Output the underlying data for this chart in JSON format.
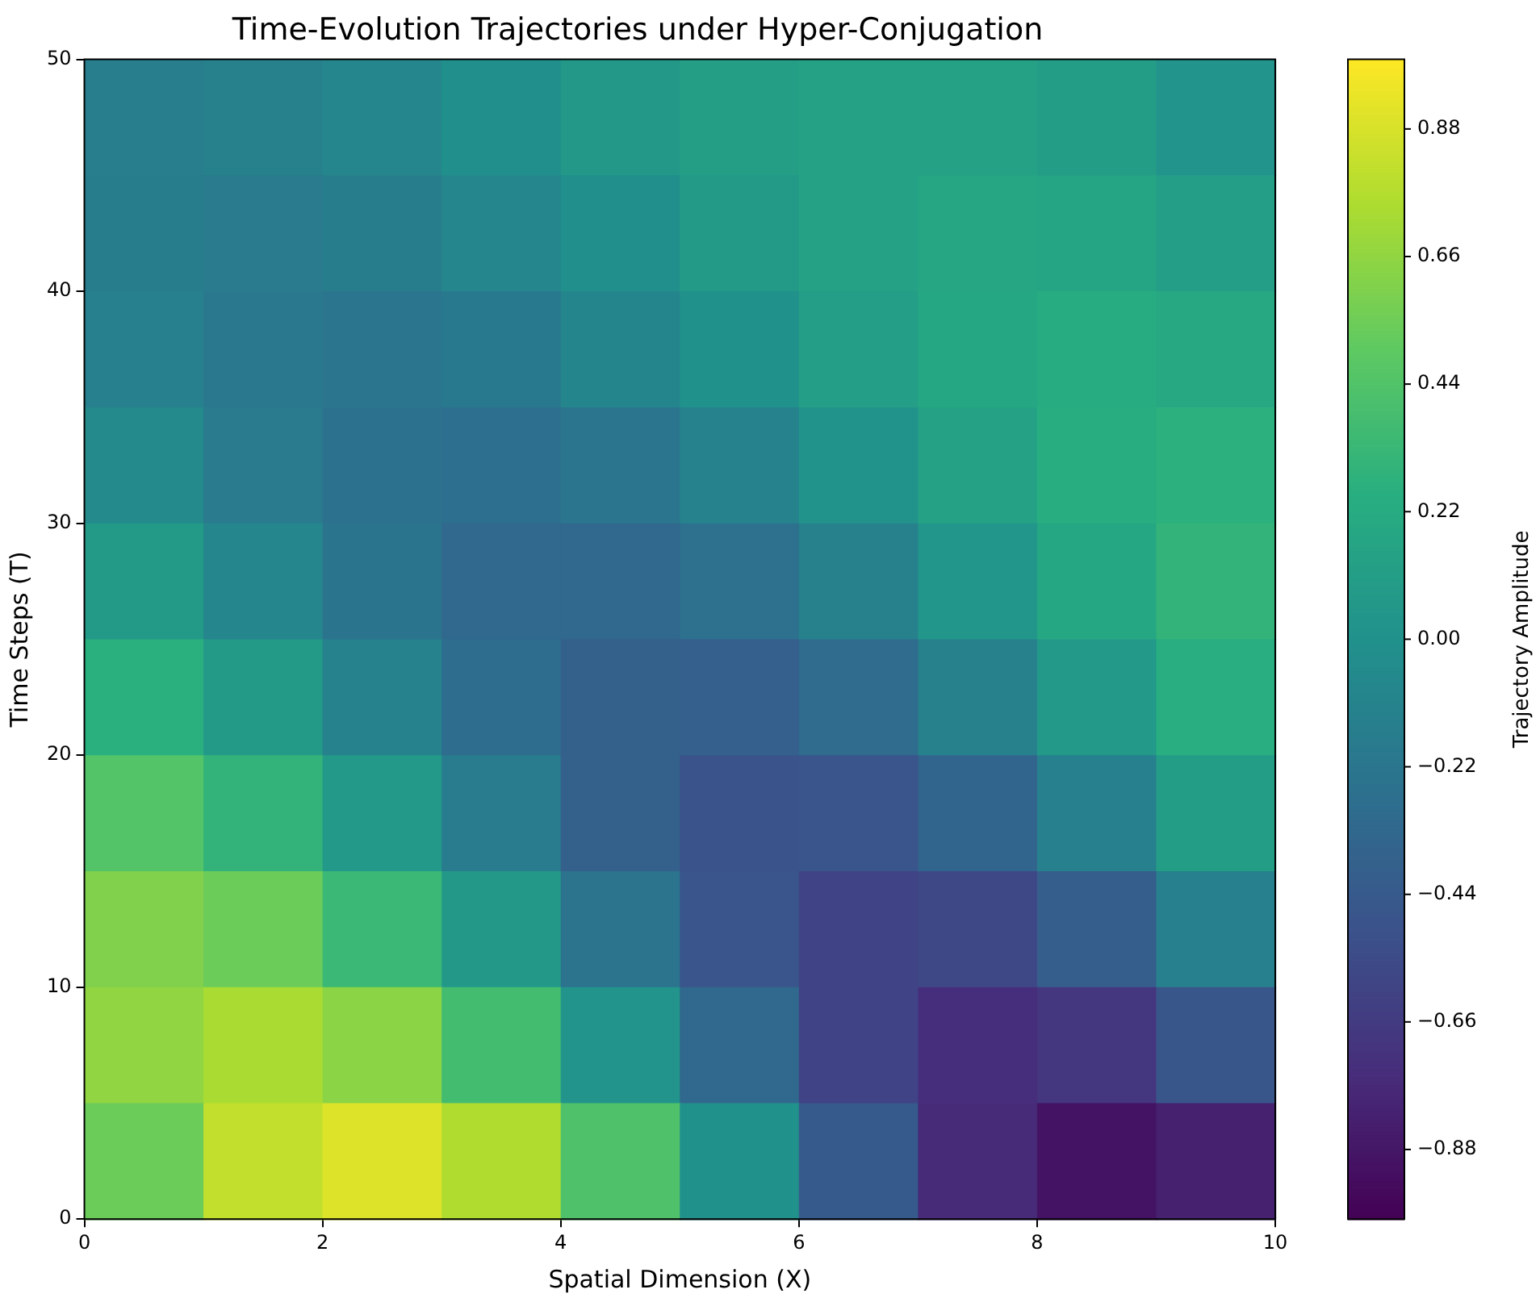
{
  "chart_data": {
    "type": "heatmap",
    "title": "Time-Evolution Trajectories under Hyper-Conjugation",
    "xlabel": "Spatial Dimension (X)",
    "ylabel": "Time Steps (T)",
    "clabel": "Trajectory Amplitude",
    "xlim": [
      0,
      10
    ],
    "ylim": [
      0,
      50
    ],
    "xticks": [
      0,
      2,
      4,
      6,
      8,
      10
    ],
    "yticks": [
      0,
      10,
      20,
      30,
      40,
      50
    ],
    "clim": [
      -1,
      1
    ],
    "cticks": [
      {
        "value": -0.88,
        "label": "−0.88"
      },
      {
        "value": -0.66,
        "label": "−0.66"
      },
      {
        "value": -0.44,
        "label": "−0.44"
      },
      {
        "value": -0.22,
        "label": "−0.22"
      },
      {
        "value": 0,
        "label": "0.00"
      },
      0.22,
      0.44,
      0.66,
      0.88
    ],
    "cells": [
      [
        -0.15,
        -0.13,
        -0.08,
        -0.01,
        0.06,
        0.12,
        0.15,
        0.14,
        0.1,
        0.03
      ],
      [
        -0.16,
        -0.18,
        -0.16,
        -0.09,
        -0.01,
        0.08,
        0.15,
        0.18,
        0.17,
        0.11
      ],
      [
        -0.14,
        -0.2,
        -0.22,
        -0.19,
        -0.1,
        0.0,
        0.11,
        0.19,
        0.22,
        0.2
      ],
      [
        -0.06,
        -0.18,
        -0.25,
        -0.27,
        -0.22,
        -0.11,
        0.02,
        0.15,
        0.24,
        0.27
      ],
      [
        0.08,
        -0.08,
        -0.23,
        -0.32,
        -0.33,
        -0.26,
        -0.13,
        0.04,
        0.19,
        0.3
      ],
      [
        0.26,
        0.08,
        -0.12,
        -0.29,
        -0.39,
        -0.4,
        -0.3,
        -0.13,
        0.07,
        0.25
      ],
      [
        0.45,
        0.3,
        0.07,
        -0.17,
        -0.38,
        -0.49,
        -0.48,
        -0.35,
        -0.14,
        0.1
      ],
      [
        0.61,
        0.54,
        0.34,
        0.06,
        -0.24,
        -0.48,
        -0.6,
        -0.57,
        -0.41,
        -0.14
      ],
      [
        0.66,
        0.74,
        0.64,
        0.38,
        0.03,
        -0.32,
        -0.6,
        -0.74,
        -0.69,
        -0.47
      ],
      [
        0.54,
        0.82,
        0.9,
        0.76,
        0.43,
        0.0,
        -0.44,
        -0.76,
        -0.9,
        -0.82
      ]
    ]
  }
}
